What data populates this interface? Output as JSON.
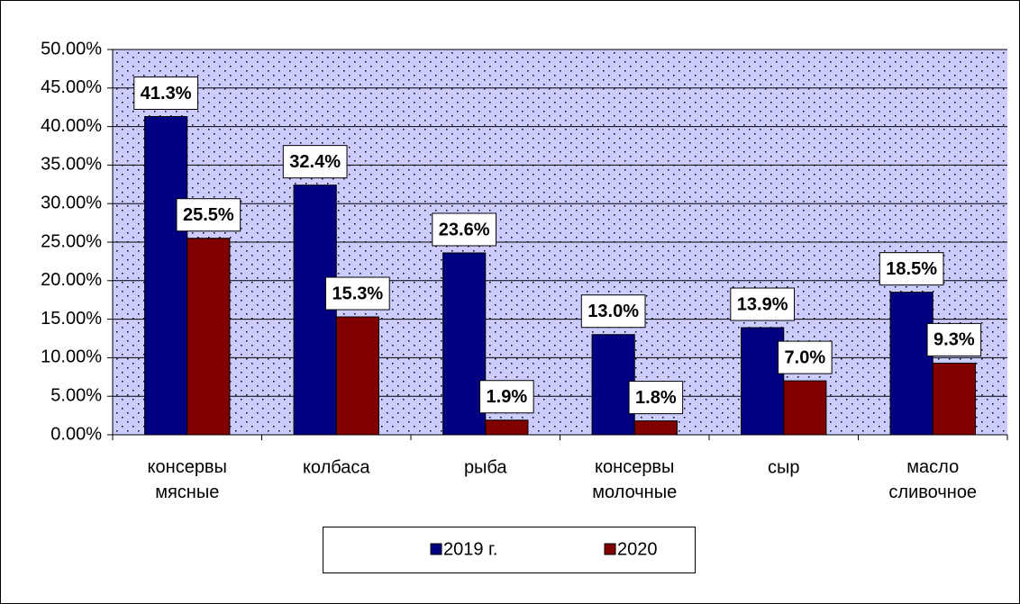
{
  "chart_data": {
    "type": "bar",
    "categories": [
      "консервы мясные",
      "колбаса",
      "рыба",
      "консервы молочные",
      "сыр",
      "масло сливочное"
    ],
    "series": [
      {
        "name": "2019 г.",
        "color": "#000080",
        "values": [
          41.3,
          32.4,
          23.6,
          13.0,
          13.9,
          18.5
        ],
        "value_labels": [
          "41.3%",
          "32.4%",
          "23.6%",
          "13.0%",
          "13.9%",
          "18.5%"
        ]
      },
      {
        "name": "2020",
        "color": "#800000",
        "values": [
          25.5,
          15.3,
          1.9,
          1.8,
          7.0,
          9.3
        ],
        "value_labels": [
          "25.5%",
          "15.3%",
          "1.9%",
          "1.8%",
          "7.0%",
          "9.3%"
        ]
      }
    ],
    "ylim": [
      0,
      50
    ],
    "yticks": [
      {
        "value": 0,
        "label": "0.00%"
      },
      {
        "value": 5,
        "label": "5.00%"
      },
      {
        "value": 10,
        "label": "10.00%"
      },
      {
        "value": 15,
        "label": "15.00%"
      },
      {
        "value": 20,
        "label": "20.00%"
      },
      {
        "value": 25,
        "label": "25.00%"
      },
      {
        "value": 30,
        "label": "30.00%"
      },
      {
        "value": 35,
        "label": "35.00%"
      },
      {
        "value": 40,
        "label": "40.00%"
      },
      {
        "value": 45,
        "label": "45.00%"
      },
      {
        "value": 50,
        "label": "50.00%"
      }
    ],
    "grid": true,
    "legend": "bottom"
  }
}
